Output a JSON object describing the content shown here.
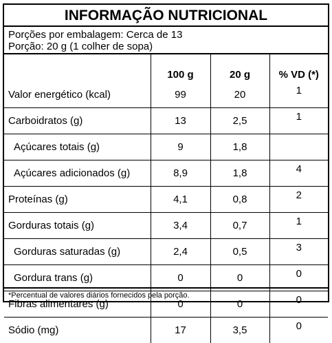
{
  "title": "INFORMAÇÃO NUTRICIONAL",
  "servings": {
    "per_package": "Porções por embalagem: Cerca de 13",
    "portion": "Porção: 20 g (1 colher de sopa)"
  },
  "headers": [
    "",
    "100 g",
    "20 g",
    "% VD (*)"
  ],
  "rows": [
    {
      "name": "Valor energético (kcal)",
      "sub": false,
      "v100": "99",
      "v20": "20",
      "vd": "1"
    },
    {
      "name": "Carboidratos (g)",
      "sub": false,
      "v100": "13",
      "v20": "2,5",
      "vd": "1"
    },
    {
      "name": "Açúcares totais (g)",
      "sub": true,
      "v100": "9",
      "v20": "1,8",
      "vd": ""
    },
    {
      "name": "Açúcares adicionados (g)",
      "sub": true,
      "v100": "8,9",
      "v20": "1,8",
      "vd": "4"
    },
    {
      "name": "Proteínas (g)",
      "sub": false,
      "v100": "4,1",
      "v20": "0,8",
      "vd": "2"
    },
    {
      "name": "Gorduras totais (g)",
      "sub": false,
      "v100": "3,4",
      "v20": "0,7",
      "vd": "1"
    },
    {
      "name": "Gorduras saturadas (g)",
      "sub": true,
      "v100": "2,4",
      "v20": "0,5",
      "vd": "3"
    },
    {
      "name": "Gordura trans (g)",
      "sub": true,
      "v100": "0",
      "v20": "0",
      "vd": "0"
    },
    {
      "name": "Fibras alimentares (g)",
      "sub": false,
      "v100": "0",
      "v20": "0",
      "vd": "0"
    },
    {
      "name": "Sódio (mg)",
      "sub": false,
      "v100": "17",
      "v20": "3,5",
      "vd": "0"
    }
  ],
  "footnote": "*Percentual de valores diários fornecidos pela porção."
}
